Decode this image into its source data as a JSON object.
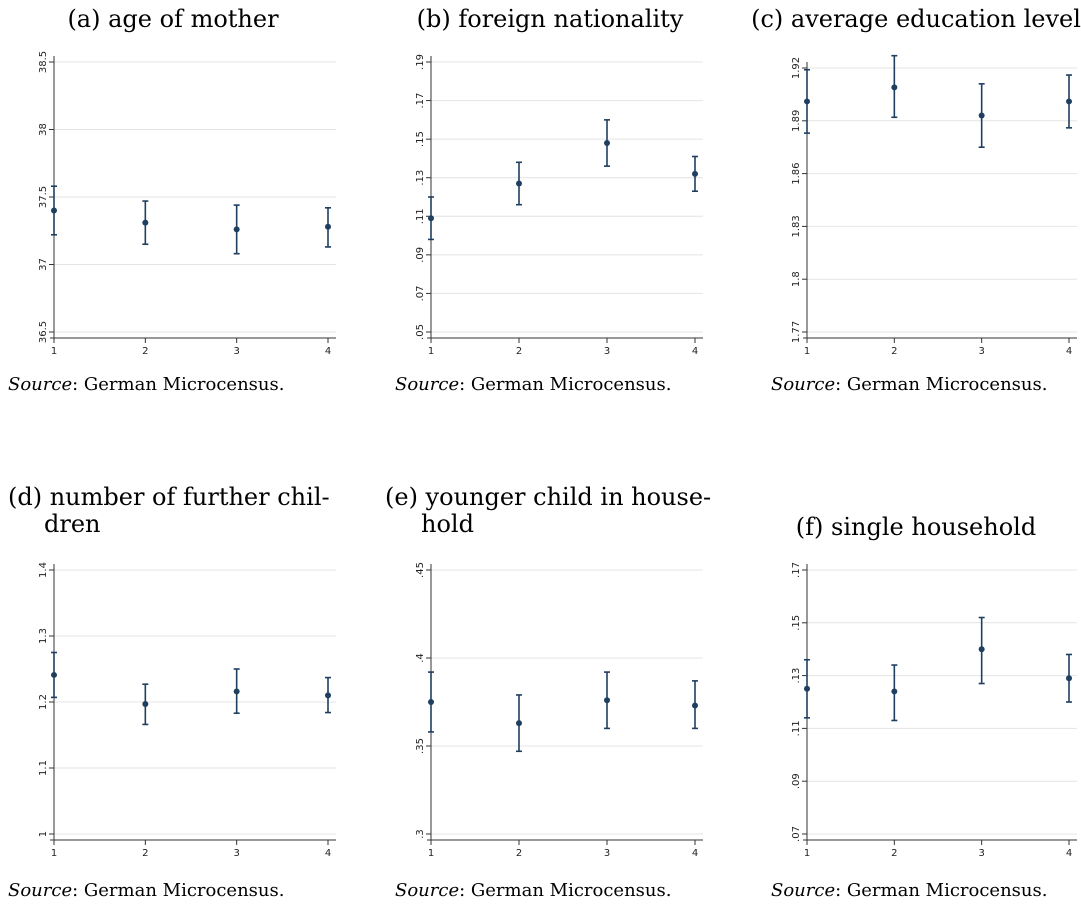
{
  "source_prefix": "Source",
  "source_suffix": ": German Microcensus.",
  "colors": {
    "marker": "#1f3f60",
    "grid": "#e4e4e4",
    "axis": "#333333"
  },
  "chart_data": [
    {
      "type": "scatter",
      "panel_label": "(a)",
      "title": "age of mother",
      "title_lines": [
        "(a) age of mother"
      ],
      "x": [
        1,
        2,
        3,
        4
      ],
      "xticks": [
        "1",
        "2",
        "3",
        "4"
      ],
      "yticks": [
        "36.5",
        "37",
        "37.5",
        "38",
        "38.5"
      ],
      "ylim": [
        36.5,
        38.5
      ],
      "series": [
        {
          "values": [
            37.4,
            37.31,
            37.26,
            37.28
          ],
          "ci_low": [
            37.22,
            37.15,
            37.08,
            37.13
          ],
          "ci_high": [
            37.58,
            37.47,
            37.44,
            37.42
          ]
        }
      ],
      "grid": true,
      "xlabel": "",
      "ylabel": ""
    },
    {
      "type": "scatter",
      "panel_label": "(b)",
      "title": "foreign nationality",
      "title_lines": [
        "(b) foreign nationality"
      ],
      "x": [
        1,
        2,
        3,
        4
      ],
      "xticks": [
        "1",
        "2",
        "3",
        "4"
      ],
      "yticks": [
        ".05",
        ".07",
        ".09",
        ".11",
        ".13",
        ".15",
        ".17",
        ".19"
      ],
      "ylim": [
        0.05,
        0.19
      ],
      "series": [
        {
          "values": [
            0.109,
            0.127,
            0.148,
            0.132
          ],
          "ci_low": [
            0.098,
            0.116,
            0.136,
            0.123
          ],
          "ci_high": [
            0.12,
            0.138,
            0.16,
            0.141
          ]
        }
      ],
      "grid": true,
      "xlabel": "",
      "ylabel": ""
    },
    {
      "type": "scatter",
      "panel_label": "(c)",
      "title": "average education level",
      "title_lines": [
        "(c) average education level"
      ],
      "x": [
        1,
        2,
        3,
        4
      ],
      "xticks": [
        "1",
        "2",
        "3",
        "4"
      ],
      "yticks": [
        "1.77",
        "1.8",
        "1.83",
        "1.86",
        "1.89",
        "1.92"
      ],
      "ylim": [
        1.77,
        1.92
      ],
      "series": [
        {
          "values": [
            1.901,
            1.909,
            1.893,
            1.901
          ],
          "ci_low": [
            1.883,
            1.892,
            1.875,
            1.886
          ],
          "ci_high": [
            1.919,
            1.927,
            1.911,
            1.916
          ]
        }
      ],
      "grid": true,
      "xlabel": "",
      "ylabel": ""
    },
    {
      "type": "scatter",
      "panel_label": "(d)",
      "title": "number of further children",
      "title_lines": [
        "(d) number of further chil-",
        "dren"
      ],
      "x": [
        1,
        2,
        3,
        4
      ],
      "xticks": [
        "1",
        "2",
        "3",
        "4"
      ],
      "yticks": [
        "1",
        "1.1",
        "1.2",
        "1.3",
        "1.4"
      ],
      "ylim": [
        1.0,
        1.4
      ],
      "series": [
        {
          "values": [
            1.241,
            1.197,
            1.216,
            1.21
          ],
          "ci_low": [
            1.207,
            1.166,
            1.183,
            1.184
          ],
          "ci_high": [
            1.275,
            1.227,
            1.25,
            1.237
          ]
        }
      ],
      "grid": true,
      "xlabel": "",
      "ylabel": ""
    },
    {
      "type": "scatter",
      "panel_label": "(e)",
      "title": "younger child in household",
      "title_lines": [
        "(e) younger child in house-",
        "hold"
      ],
      "x": [
        1,
        2,
        3,
        4
      ],
      "xticks": [
        "1",
        "2",
        "3",
        "4"
      ],
      "yticks": [
        ".3",
        ".35",
        ".4",
        ".45"
      ],
      "ylim": [
        0.3,
        0.45
      ],
      "series": [
        {
          "values": [
            0.375,
            0.363,
            0.376,
            0.373
          ],
          "ci_low": [
            0.358,
            0.347,
            0.36,
            0.36
          ],
          "ci_high": [
            0.392,
            0.379,
            0.392,
            0.387
          ]
        }
      ],
      "grid": true,
      "xlabel": "",
      "ylabel": ""
    },
    {
      "type": "scatter",
      "panel_label": "(f)",
      "title": "single household",
      "title_lines": [
        "(f) single household"
      ],
      "x": [
        1,
        2,
        3,
        4
      ],
      "xticks": [
        "1",
        "2",
        "3",
        "4"
      ],
      "yticks": [
        ".07",
        ".09",
        ".11",
        ".13",
        ".15",
        ".17"
      ],
      "ylim": [
        0.07,
        0.17
      ],
      "series": [
        {
          "values": [
            0.125,
            0.124,
            0.14,
            0.129
          ],
          "ci_low": [
            0.114,
            0.113,
            0.127,
            0.12
          ],
          "ci_high": [
            0.136,
            0.134,
            0.152,
            0.138
          ]
        }
      ],
      "grid": true,
      "xlabel": "",
      "ylabel": ""
    }
  ]
}
